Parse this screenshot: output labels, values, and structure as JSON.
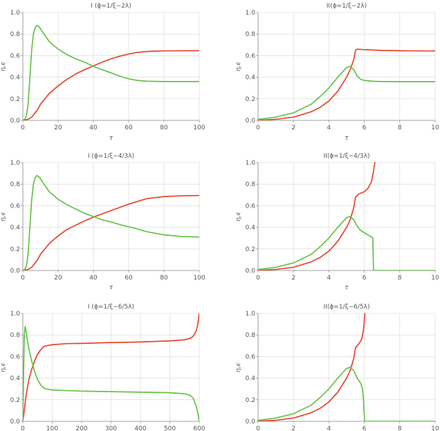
{
  "figure": {
    "colors": {
      "eps": "#e8432b",
      "eta": "#63c247"
    }
  },
  "chart_data": [
    {
      "type": "line",
      "title": "I (ϕ=1/ξ−2λ)",
      "xlabel": "τ",
      "ylabel": "η,ϵ",
      "xlim": [
        0,
        100
      ],
      "ylim": [
        0,
        1.0
      ],
      "xticks": [
        0,
        20,
        40,
        60,
        80,
        100
      ],
      "yticks": [
        0.0,
        0.2,
        0.4,
        0.6,
        0.8,
        1.0
      ],
      "grid": true,
      "series": [
        {
          "color": "#e8432b",
          "x": [
            0,
            3,
            5,
            8,
            10,
            15,
            20,
            25,
            30,
            35,
            40,
            45,
            50,
            55,
            60,
            65,
            70,
            75,
            80,
            90,
            100
          ],
          "y": [
            0,
            0.01,
            0.03,
            0.09,
            0.15,
            0.25,
            0.32,
            0.38,
            0.43,
            0.47,
            0.505,
            0.54,
            0.57,
            0.595,
            0.615,
            0.63,
            0.638,
            0.642,
            0.644,
            0.645,
            0.645
          ]
        },
        {
          "color": "#63c247",
          "x": [
            0,
            1,
            2,
            3,
            4,
            5,
            6,
            7,
            8,
            9,
            10,
            12,
            15,
            20,
            25,
            30,
            35,
            40,
            45,
            50,
            55,
            60,
            65,
            70,
            80,
            90,
            100
          ],
          "y": [
            0,
            0.01,
            0.04,
            0.15,
            0.4,
            0.65,
            0.8,
            0.86,
            0.88,
            0.87,
            0.85,
            0.8,
            0.73,
            0.66,
            0.61,
            0.57,
            0.54,
            0.5,
            0.47,
            0.44,
            0.41,
            0.385,
            0.37,
            0.363,
            0.36,
            0.36,
            0.36
          ]
        }
      ]
    },
    {
      "type": "line",
      "title": "II(ϕ=1/ξ−2λ)",
      "xlabel": "τ",
      "ylabel": "η,ϵ",
      "xlim": [
        0,
        10
      ],
      "ylim": [
        0,
        1.0
      ],
      "xticks": [
        0,
        2,
        4,
        6,
        8,
        10
      ],
      "yticks": [
        0.0,
        0.2,
        0.4,
        0.6,
        0.8,
        1.0
      ],
      "grid": true,
      "series": [
        {
          "color": "#e8432b",
          "x": [
            0,
            1,
            2,
            3,
            3.5,
            4,
            4.5,
            5,
            5.2,
            5.4,
            5.5,
            5.6,
            6,
            7,
            8,
            9,
            10
          ],
          "y": [
            0,
            0.01,
            0.03,
            0.08,
            0.12,
            0.18,
            0.27,
            0.4,
            0.47,
            0.56,
            0.65,
            0.66,
            0.655,
            0.648,
            0.645,
            0.644,
            0.643
          ]
        },
        {
          "color": "#63c247",
          "x": [
            0,
            1,
            2,
            3,
            3.5,
            4,
            4.5,
            5,
            5.2,
            5.4,
            5.6,
            5.8,
            6,
            6.5,
            7,
            8,
            9,
            10
          ],
          "y": [
            0.01,
            0.03,
            0.07,
            0.15,
            0.22,
            0.3,
            0.4,
            0.49,
            0.5,
            0.47,
            0.41,
            0.38,
            0.37,
            0.362,
            0.36,
            0.358,
            0.358,
            0.358
          ]
        }
      ]
    },
    {
      "type": "line",
      "title": "I (ϕ=1/ξ−4/3λ)",
      "xlabel": "τ",
      "ylabel": "η,ϵ",
      "xlim": [
        0,
        100
      ],
      "ylim": [
        0,
        1.0
      ],
      "xticks": [
        0,
        20,
        40,
        60,
        80,
        100
      ],
      "yticks": [
        0.0,
        0.2,
        0.4,
        0.6,
        0.8,
        1.0
      ],
      "grid": true,
      "series": [
        {
          "color": "#e8432b",
          "x": [
            0,
            3,
            5,
            8,
            10,
            15,
            20,
            25,
            30,
            35,
            40,
            45,
            50,
            55,
            60,
            65,
            70,
            75,
            80,
            90,
            100
          ],
          "y": [
            0,
            0.01,
            0.03,
            0.09,
            0.15,
            0.25,
            0.32,
            0.38,
            0.42,
            0.46,
            0.495,
            0.525,
            0.555,
            0.585,
            0.615,
            0.64,
            0.665,
            0.675,
            0.685,
            0.692,
            0.695
          ]
        },
        {
          "color": "#63c247",
          "x": [
            0,
            1,
            2,
            3,
            4,
            5,
            6,
            7,
            8,
            9,
            10,
            12,
            15,
            20,
            25,
            30,
            35,
            40,
            45,
            50,
            55,
            60,
            65,
            70,
            80,
            90,
            100
          ],
          "y": [
            0,
            0.01,
            0.04,
            0.15,
            0.4,
            0.65,
            0.8,
            0.86,
            0.88,
            0.87,
            0.85,
            0.8,
            0.73,
            0.66,
            0.61,
            0.57,
            0.53,
            0.5,
            0.47,
            0.45,
            0.425,
            0.405,
            0.385,
            0.36,
            0.33,
            0.315,
            0.31
          ]
        }
      ]
    },
    {
      "type": "line",
      "title": "II(ϕ=1/ξ−4/3λ)",
      "xlabel": "τ",
      "ylabel": "η,ϵ",
      "xlim": [
        0,
        10
      ],
      "ylim": [
        0,
        1.0
      ],
      "xticks": [
        0,
        2,
        4,
        6,
        8,
        10
      ],
      "yticks": [
        0.0,
        0.2,
        0.4,
        0.6,
        0.8,
        1.0
      ],
      "grid": true,
      "series": [
        {
          "color": "#e8432b",
          "x": [
            0,
            1,
            2,
            3,
            3.5,
            4,
            4.5,
            5,
            5.2,
            5.4,
            5.5,
            5.7,
            6,
            6.2,
            6.4,
            6.5,
            6.55,
            6.6
          ],
          "y": [
            0,
            0.01,
            0.03,
            0.08,
            0.12,
            0.18,
            0.27,
            0.4,
            0.47,
            0.58,
            0.68,
            0.71,
            0.73,
            0.76,
            0.82,
            0.9,
            0.96,
            1.0
          ]
        },
        {
          "color": "#63c247",
          "x": [
            0,
            1,
            2,
            3,
            3.5,
            4,
            4.5,
            5,
            5.2,
            5.4,
            5.6,
            5.8,
            6,
            6.2,
            6.4,
            6.48,
            6.5,
            6.52,
            7,
            8,
            9,
            10
          ],
          "y": [
            0.01,
            0.03,
            0.07,
            0.15,
            0.22,
            0.3,
            0.4,
            0.49,
            0.5,
            0.47,
            0.41,
            0.37,
            0.35,
            0.33,
            0.31,
            0.3,
            0.15,
            0,
            0,
            0,
            0,
            0
          ]
        }
      ]
    },
    {
      "type": "line",
      "title": "I (ϕ=1/ξ−6/5λ)",
      "xlabel": "",
      "ylabel": "η,ϵ",
      "xlim": [
        0,
        600
      ],
      "ylim": [
        0,
        1.0
      ],
      "xticks": [
        0,
        100,
        200,
        300,
        400,
        500,
        600
      ],
      "yticks": [
        0.0,
        0.2,
        0.4,
        0.6,
        0.8,
        1.0
      ],
      "grid": true,
      "series": [
        {
          "color": "#e8432b",
          "x": [
            0,
            5,
            10,
            20,
            30,
            40,
            50,
            60,
            70,
            80,
            100,
            150,
            200,
            300,
            400,
            500,
            550,
            570,
            580,
            590,
            595,
            600
          ],
          "y": [
            0,
            0.1,
            0.22,
            0.38,
            0.48,
            0.56,
            0.62,
            0.66,
            0.69,
            0.7,
            0.71,
            0.72,
            0.722,
            0.73,
            0.735,
            0.745,
            0.755,
            0.77,
            0.79,
            0.84,
            0.9,
            1.0
          ]
        },
        {
          "color": "#63c247",
          "x": [
            0,
            3,
            5,
            8,
            10,
            15,
            20,
            30,
            40,
            50,
            60,
            70,
            80,
            100,
            150,
            200,
            300,
            400,
            500,
            550,
            570,
            580,
            590,
            595,
            598,
            600
          ],
          "y": [
            0,
            0.5,
            0.8,
            0.88,
            0.85,
            0.76,
            0.68,
            0.56,
            0.46,
            0.39,
            0.34,
            0.31,
            0.3,
            0.29,
            0.285,
            0.28,
            0.275,
            0.27,
            0.265,
            0.255,
            0.24,
            0.21,
            0.14,
            0.08,
            0.03,
            0
          ]
        }
      ]
    },
    {
      "type": "line",
      "title": "II(ϕ=1/ξ−6/5λ)",
      "xlabel": "",
      "ylabel": "η,ϵ",
      "xlim": [
        0,
        10
      ],
      "ylim": [
        0,
        1.0
      ],
      "xticks": [
        0,
        2,
        4,
        6,
        8,
        10
      ],
      "yticks": [
        0.0,
        0.2,
        0.4,
        0.6,
        0.8,
        1.0
      ],
      "grid": true,
      "series": [
        {
          "color": "#e8432b",
          "x": [
            0,
            1,
            2,
            3,
            3.5,
            4,
            4.5,
            5,
            5.2,
            5.4,
            5.5,
            5.7,
            5.85,
            5.95,
            6.0,
            6.03
          ],
          "y": [
            0,
            0.01,
            0.03,
            0.08,
            0.12,
            0.18,
            0.27,
            0.4,
            0.47,
            0.58,
            0.68,
            0.72,
            0.76,
            0.84,
            0.93,
            1.0
          ]
        },
        {
          "color": "#63c247",
          "x": [
            0,
            1,
            2,
            3,
            3.5,
            4,
            4.5,
            5,
            5.2,
            5.4,
            5.6,
            5.8,
            5.9,
            5.95,
            6.0,
            6.02,
            7,
            8,
            9,
            10
          ],
          "y": [
            0.01,
            0.03,
            0.07,
            0.15,
            0.22,
            0.3,
            0.4,
            0.49,
            0.5,
            0.47,
            0.4,
            0.35,
            0.3,
            0.2,
            0.05,
            0,
            0,
            0,
            0,
            0
          ]
        }
      ]
    }
  ]
}
